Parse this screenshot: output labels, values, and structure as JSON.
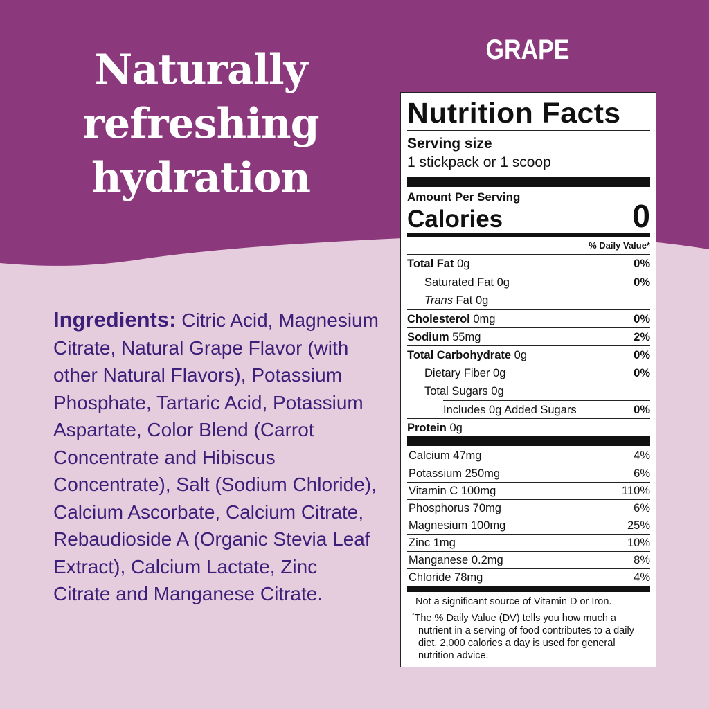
{
  "colors": {
    "top_background": "#8B387D",
    "bottom_background": "#E6CDDE",
    "ingredients_text": "#3B1F78",
    "headline_text": "#FFFFFF"
  },
  "headline": {
    "lines": [
      "Naturally",
      "refreshing",
      "hydration"
    ]
  },
  "flavor": "GRAPE",
  "ingredients": {
    "label": "Ingredients:",
    "text": "Citric Acid, Magnesium Citrate, Natural Grape Flavor (with other Natural Flavors), Potassium Phosphate, Tartaric Acid, Potassium Aspartate, Color Blend (Carrot Concentrate and Hibiscus Concentrate), Salt (Sodium Chloride), Calcium Ascorbate, Calcium Citrate, Rebaudioside A (Organic Stevia Leaf Extract), Calcium Lactate, Zinc Citrate and Manganese Citrate."
  },
  "nutrition": {
    "title": "Nutrition Facts",
    "serving_size_label": "Serving size",
    "serving_size": "1 stickpack or 1 scoop",
    "amount_per_serving": "Amount Per Serving",
    "calories_label": "Calories",
    "calories": "0",
    "dv_header": "% Daily Value*",
    "rows": [
      {
        "name": "Total Fat",
        "amount": "0g",
        "dv": "0%"
      },
      {
        "name": "Saturated Fat",
        "amount": "0g",
        "dv": "0%"
      },
      {
        "name": "Trans",
        "name_suffix": "Fat",
        "amount": "0g",
        "dv": ""
      },
      {
        "name": "Cholesterol",
        "amount": "0mg",
        "dv": "0%"
      },
      {
        "name": "Sodium",
        "amount": "55mg",
        "dv": "2%"
      },
      {
        "name": "Total Carbohydrate",
        "amount": "0g",
        "dv": "0%"
      },
      {
        "name": "Dietary Fiber",
        "amount": "0g",
        "dv": "0%"
      },
      {
        "name": "Total Sugars",
        "amount": "0g",
        "dv": ""
      },
      {
        "name": "Includes 0g Added Sugars",
        "amount": "",
        "dv": "0%"
      },
      {
        "name": "Protein",
        "amount": "0g",
        "dv": ""
      }
    ],
    "micros": [
      {
        "name": "Calcium 47mg",
        "dv": "4%"
      },
      {
        "name": "Potassium 250mg",
        "dv": "6%"
      },
      {
        "name": "Vitamin C 100mg",
        "dv": "110%"
      },
      {
        "name": "Phosphorus 70mg",
        "dv": "6%"
      },
      {
        "name": "Magnesium 100mg",
        "dv": "25%"
      },
      {
        "name": "Zinc 1mg",
        "dv": "10%"
      },
      {
        "name": "Manganese 0.2mg",
        "dv": "8%"
      },
      {
        "name": "Chloride 78mg",
        "dv": "4%"
      }
    ],
    "footnote_source": "Not a significant source of Vitamin D or Iron.",
    "footnote_star": "*",
    "footnote_dv": "The % Daily Value (DV) tells you how much a nutrient in a serving of food contributes to a daily diet. 2,000 calories a day is used for general nutrition advice."
  }
}
